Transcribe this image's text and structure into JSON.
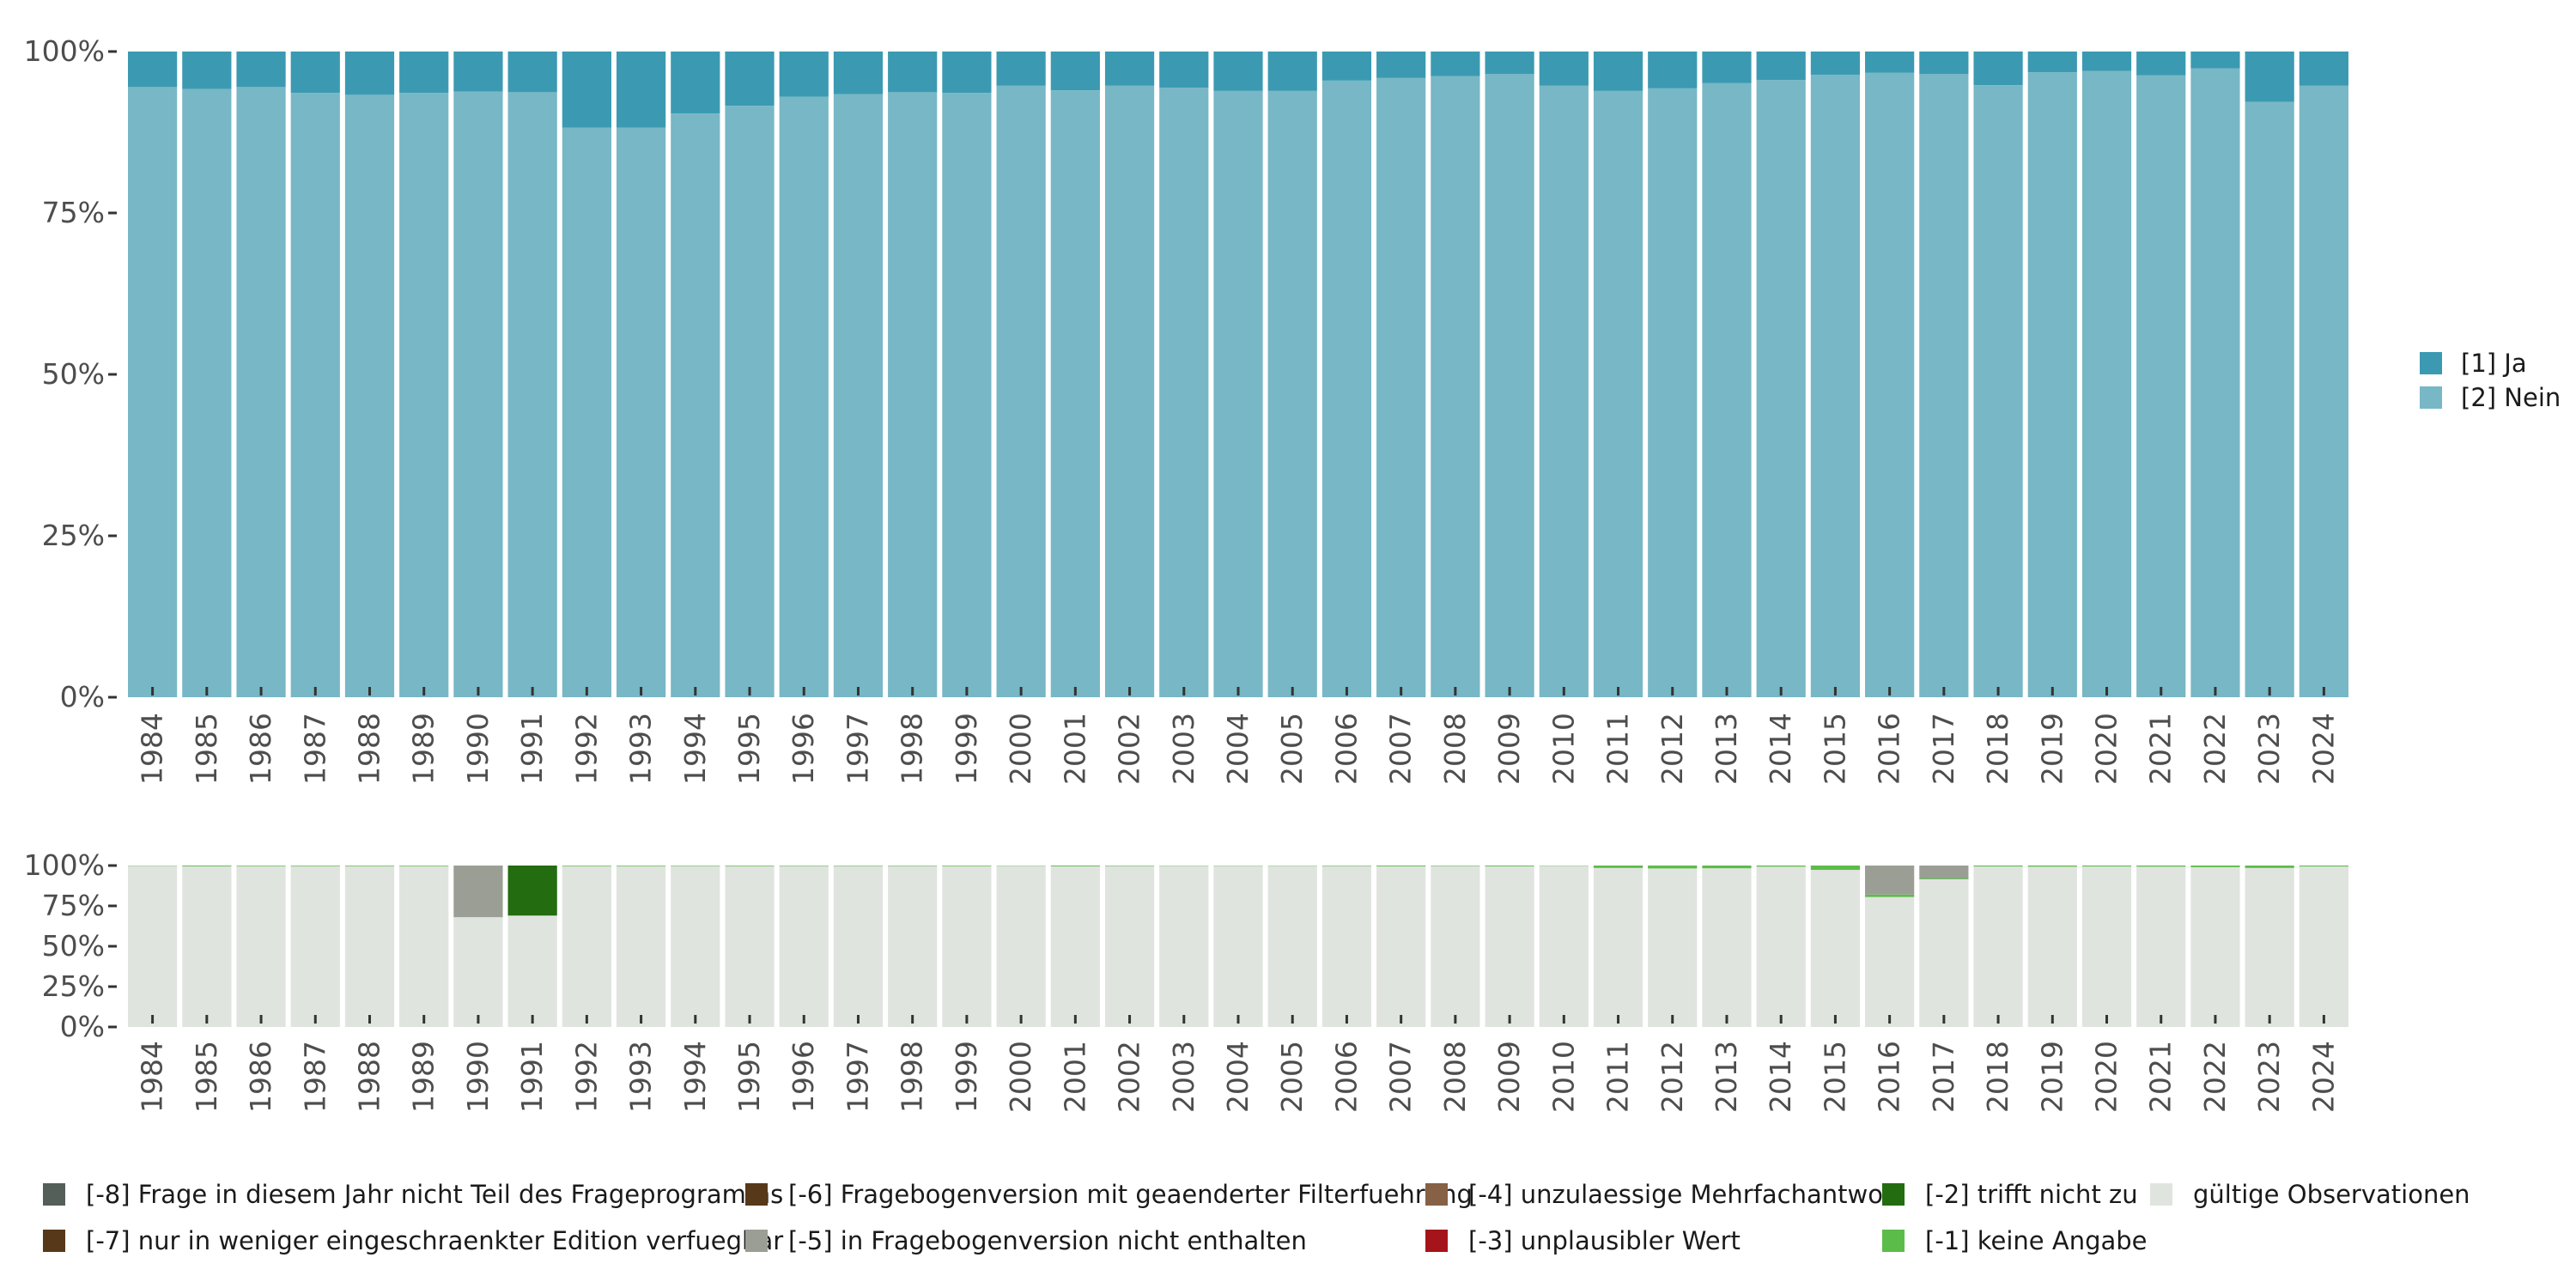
{
  "colors": {
    "ja": "#3b9ab2",
    "nein": "#78b7c5",
    "m8": "#555f5a",
    "m7": "#573819",
    "m6": "#573819",
    "m5": "#9a9e95",
    "m4": "#866146",
    "m3": "#a5141a",
    "m2": "#236c10",
    "m1": "#5cbc49",
    "valid": "#e0e4df"
  },
  "legend_top": [
    {
      "key": "ja",
      "label": "[1] Ja"
    },
    {
      "key": "nein",
      "label": "[2] Nein"
    }
  ],
  "legend_bottom": [
    {
      "key": "m8",
      "label": "[-8] Frage in diesem Jahr nicht Teil des Frageprogramms"
    },
    {
      "key": "m7",
      "label": "[-7] nur in weniger eingeschraenkter Edition verfuegbar"
    },
    {
      "key": "m6",
      "label": "[-6] Fragebogenversion mit geaenderter Filterfuehrung"
    },
    {
      "key": "m5",
      "label": "[-5] in Fragebogenversion nicht enthalten"
    },
    {
      "key": "m4",
      "label": "[-4] unzulaessige Mehrfachantwort"
    },
    {
      "key": "m3",
      "label": "[-3] unplausibler Wert"
    },
    {
      "key": "m2",
      "label": "[-2] trifft nicht zu"
    },
    {
      "key": "m1",
      "label": "[-1] keine Angabe"
    },
    {
      "key": "valid",
      "label": "gültige Observationen"
    }
  ],
  "chart_data": [
    {
      "type": "bar",
      "stacked": true,
      "title": "",
      "xlabel": "",
      "ylabel": "",
      "ylim": [
        0,
        100
      ],
      "yticks": [
        "0%",
        "25%",
        "50%",
        "75%",
        "100%"
      ],
      "categories": [
        "1984",
        "1985",
        "1986",
        "1987",
        "1988",
        "1989",
        "1990",
        "1991",
        "1992",
        "1993",
        "1994",
        "1995",
        "1996",
        "1997",
        "1998",
        "1999",
        "2000",
        "2001",
        "2002",
        "2003",
        "2004",
        "2005",
        "2006",
        "2007",
        "2008",
        "2009",
        "2010",
        "2011",
        "2012",
        "2013",
        "2014",
        "2015",
        "2016",
        "2017",
        "2018",
        "2019",
        "2020",
        "2021",
        "2022",
        "2023",
        "2024"
      ],
      "series": [
        {
          "name": "[2] Nein",
          "key": "nein",
          "values": [
            94.5,
            94.2,
            94.5,
            93.6,
            93.3,
            93.6,
            93.8,
            93.7,
            88.2,
            88.2,
            90.4,
            91.6,
            93.0,
            93.4,
            93.7,
            93.6,
            94.7,
            94.0,
            94.7,
            94.4,
            93.9,
            93.9,
            95.5,
            95.9,
            96.2,
            96.5,
            94.7,
            93.9,
            94.3,
            95.1,
            95.6,
            96.4,
            96.7,
            96.5,
            94.8,
            96.8,
            97.0,
            96.3,
            97.4,
            92.2,
            94.7
          ]
        },
        {
          "name": "[1] Ja",
          "key": "ja",
          "values": [
            5.5,
            5.8,
            5.5,
            6.4,
            6.7,
            6.4,
            6.2,
            6.3,
            11.8,
            11.8,
            9.6,
            8.4,
            7.0,
            6.6,
            6.3,
            6.4,
            5.3,
            6.0,
            5.3,
            5.6,
            6.1,
            6.1,
            4.5,
            4.1,
            3.8,
            3.5,
            5.3,
            6.1,
            5.7,
            4.9,
            4.4,
            3.6,
            3.3,
            3.5,
            5.2,
            3.2,
            3.0,
            3.7,
            2.6,
            7.8,
            5.3
          ]
        }
      ],
      "legend": "right"
    },
    {
      "type": "bar",
      "stacked": true,
      "title": "",
      "xlabel": "",
      "ylabel": "",
      "ylim": [
        0,
        100
      ],
      "yticks": [
        "0%",
        "25%",
        "50%",
        "75%",
        "100%"
      ],
      "categories": [
        "1984",
        "1985",
        "1986",
        "1987",
        "1988",
        "1989",
        "1990",
        "1991",
        "1992",
        "1993",
        "1994",
        "1995",
        "1996",
        "1997",
        "1998",
        "1999",
        "2000",
        "2001",
        "2002",
        "2003",
        "2004",
        "2005",
        "2006",
        "2007",
        "2008",
        "2009",
        "2010",
        "2011",
        "2012",
        "2013",
        "2014",
        "2015",
        "2016",
        "2017",
        "2018",
        "2019",
        "2020",
        "2021",
        "2022",
        "2023",
        "2024"
      ],
      "series": [
        {
          "name": "gültige Observationen",
          "key": "valid",
          "values": [
            99.8,
            99.5,
            99.6,
            99.6,
            99.6,
            99.6,
            68.0,
            69.0,
            99.6,
            99.6,
            99.7,
            99.6,
            99.7,
            99.7,
            99.7,
            99.6,
            99.8,
            99.5,
            99.7,
            99.8,
            99.8,
            99.8,
            99.7,
            99.5,
            99.7,
            99.5,
            99.8,
            98.5,
            98.2,
            98.3,
            99.3,
            97.3,
            80.5,
            91.5,
            99.4,
            99.3,
            99.4,
            99.3,
            99.0,
            98.5,
            99.4
          ]
        },
        {
          "name": "[-1] keine Angabe",
          "key": "m1",
          "values": [
            0.2,
            0.5,
            0.4,
            0.4,
            0.4,
            0.4,
            0.0,
            0.0,
            0.4,
            0.4,
            0.3,
            0.4,
            0.3,
            0.3,
            0.3,
            0.4,
            0.2,
            0.5,
            0.3,
            0.2,
            0.2,
            0.2,
            0.3,
            0.5,
            0.3,
            0.5,
            0.2,
            1.5,
            1.8,
            1.7,
            0.7,
            2.7,
            1.5,
            0.5,
            0.6,
            0.7,
            0.6,
            0.7,
            1.0,
            1.5,
            0.6
          ]
        },
        {
          "name": "[-2] trifft nicht zu",
          "key": "m2",
          "values": [
            0,
            0,
            0,
            0,
            0,
            0,
            0,
            31.0,
            0,
            0,
            0,
            0,
            0,
            0,
            0,
            0,
            0,
            0,
            0,
            0,
            0,
            0,
            0,
            0,
            0,
            0,
            0,
            0,
            0,
            0,
            0,
            0,
            0,
            0,
            0,
            0,
            0,
            0,
            0,
            0,
            0
          ]
        },
        {
          "name": "[-5] in Fragebogenversion nicht enthalten",
          "key": "m5",
          "values": [
            0,
            0,
            0,
            0,
            0,
            0,
            32.0,
            0,
            0,
            0,
            0,
            0,
            0,
            0,
            0,
            0,
            0,
            0,
            0,
            0,
            0,
            0,
            0,
            0,
            0,
            0,
            0,
            0,
            0,
            0,
            0,
            0,
            18.0,
            8.0,
            0,
            0,
            0,
            0,
            0,
            0,
            0
          ]
        }
      ],
      "legend": "bottom"
    }
  ]
}
